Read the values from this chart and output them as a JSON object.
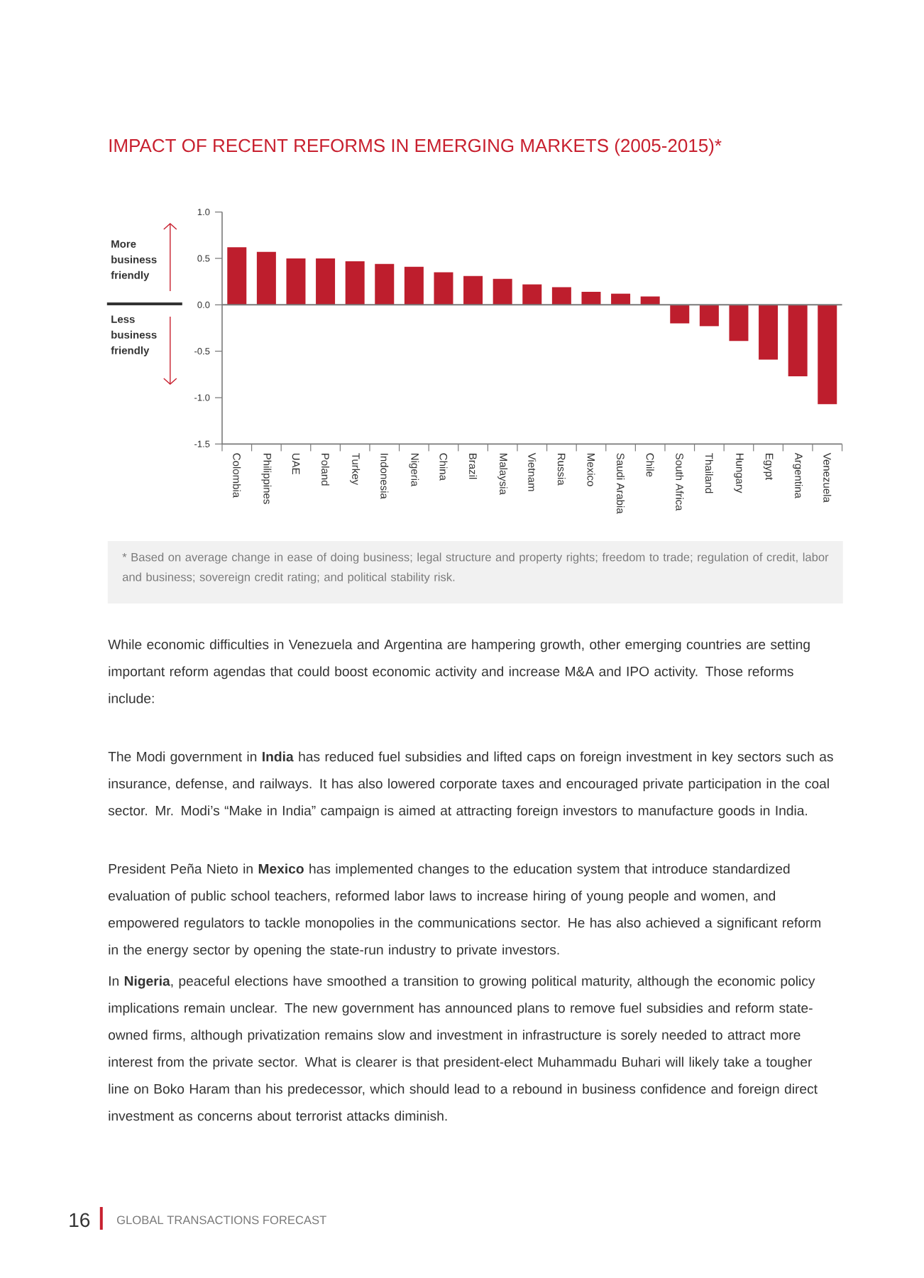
{
  "chart_data": {
    "type": "bar",
    "title": "IMPACT OF RECENT REFORMS IN EMERGING MARKETS (2005-2015)*",
    "categories": [
      "Colombia",
      "Philippines",
      "UAE",
      "Poland",
      "Turkey",
      "Indonesia",
      "Nigeria",
      "China",
      "Brazil",
      "Malaysia",
      "Vietnam",
      "Russia",
      "Mexico",
      "Saudi Arabia",
      "Chile",
      "South Africa",
      "Thailand",
      "Hungary",
      "Egypt",
      "Argentina",
      "Venezuela"
    ],
    "values": [
      0.62,
      0.57,
      0.5,
      0.5,
      0.47,
      0.44,
      0.41,
      0.35,
      0.31,
      0.28,
      0.22,
      0.19,
      0.14,
      0.12,
      0.09,
      -0.2,
      -0.23,
      -0.39,
      -0.59,
      -0.77,
      -1.07
    ],
    "color": "#be1e2d",
    "ylim": [
      -1.5,
      1.0
    ],
    "yticks": [
      {
        "value": -1.5,
        "label": "-1.5"
      },
      {
        "value": -1.0,
        "label": "-1.0"
      },
      {
        "value": -0.5,
        "label": "-0.5"
      },
      {
        "value": 0,
        "label": "0.0"
      },
      {
        "value": 0.5,
        "label": "0.5"
      },
      {
        "value": 1.0,
        "label": "1.0"
      }
    ],
    "annotations": [
      "* Based on average change in ease of doing business; legal structure and property rights; freedom to trade; regulation of credit, labor and business; sovereign credit rating; and political stability risk.",
      "More business friendly",
      "Less business friendly",
      "While economic difficulties in Venezuela and Argentina are hampering growth, other emerging countries are setting important reform agendas that could boost economic activity and increase M&A and IPO activity. Those reforms include:",
      "The Modi government in **India** has reduced fuel subsidies and lifted caps on foreign investment in key sectors such as insurance, defense, and railways. It has also lowered corporate taxes and encouraged private participation in the coal sector. Mr. Modi’s “Make in India” campaign is aimed at attracting foreign investors to manufacture goods in India.",
      "President Peña Nieto in **Mexico** has implemented changes to the education system that introduce standardized evaluation of public school teachers, reformed labor laws to increase hiring of young people and women, and empowered regulators to tackle monopolies in the communications sector. He has also achieved a significant reform in the energy sector by opening the state-run industry to private investors.",
      "In **Nigeria**, peaceful elections have smoothed a transition to growing political maturity, although the economic policy implications remain unclear. The new government has announced plans to remove fuel subsidies and reform state-owned firms, although privatization remains slow and investment in infrastructure is sorely needed to attract more interest from the private sector. What is clearer is that president-elect Muhammadu Buhari will likely take a tougher line on Boko Haram than his predecessor, which should lead to a rebound in business confidence and foreign direct investment as concerns about terrorist attacks diminish.",
      "16",
      "GLOBAL TRANSACTIONS FORECAST"
    ]
  }
}
